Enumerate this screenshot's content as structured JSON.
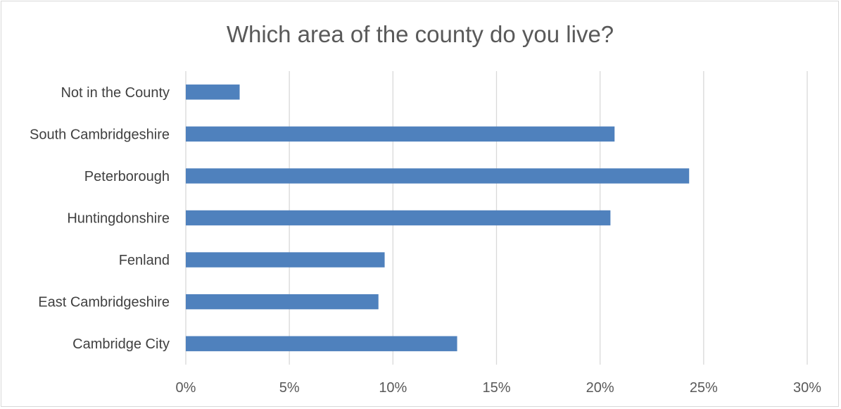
{
  "chart_data": {
    "type": "bar",
    "orientation": "horizontal",
    "title": "Which area of the county do you live?",
    "xlabel": "",
    "ylabel": "",
    "xlim": [
      0,
      30
    ],
    "x_ticks": [
      "0%",
      "5%",
      "10%",
      "15%",
      "20%",
      "25%",
      "30%"
    ],
    "grid": true,
    "legend": "none",
    "bar_color": "#4f81bd",
    "categories": [
      "Cambridge City",
      "East Cambridgeshire",
      "Fenland",
      "Huntingdonshire",
      "Peterborough",
      "South Cambridgeshire",
      "Not in the County"
    ],
    "values": [
      13.1,
      9.3,
      9.6,
      20.5,
      24.3,
      20.7,
      2.6
    ]
  }
}
